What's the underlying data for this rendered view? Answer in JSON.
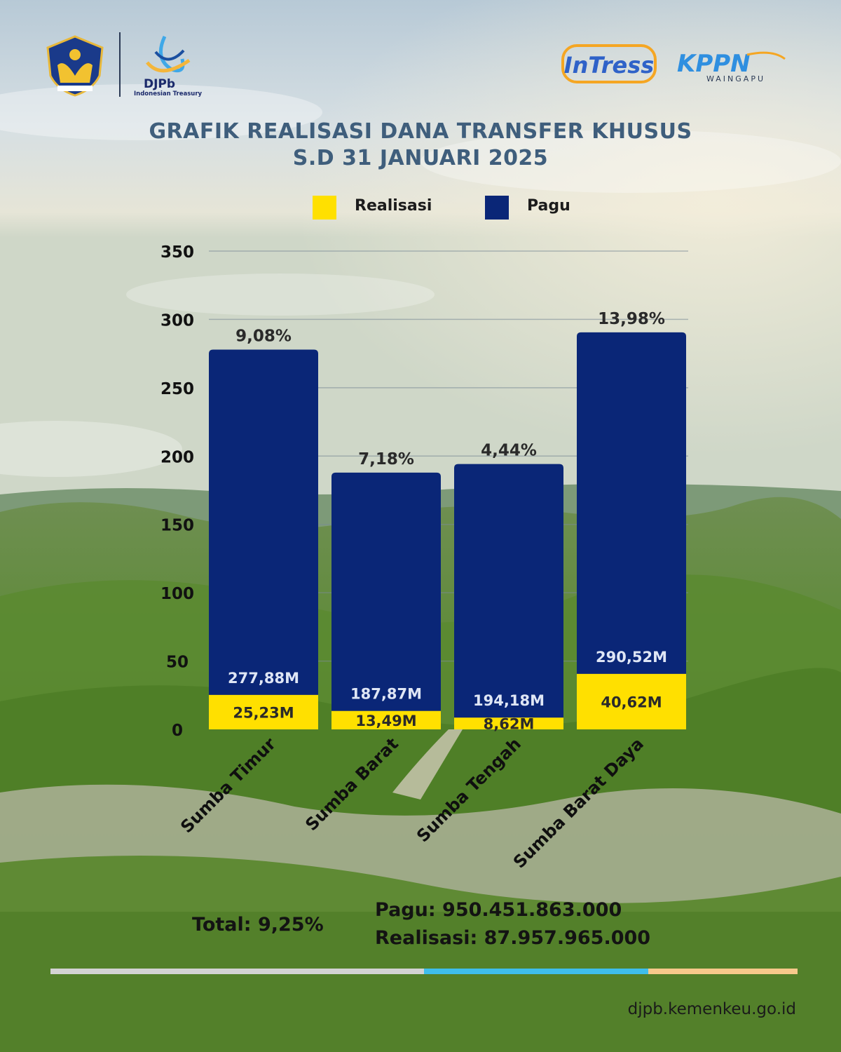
{
  "header": {
    "djpb_name": "DJPb",
    "djpb_subtitle": "Indonesian Treasury",
    "intress_logo_text": "InTress",
    "kppn_logo_text": "KPPN",
    "kppn_sub": "WAINGAPU"
  },
  "colors": {
    "realisasi": "#FFE000",
    "pagu": "#0A2677",
    "title": "#3F5E7C",
    "strip_gray": "#D3D3D3",
    "strip_blue": "#3FBEEC",
    "strip_orange": "#F7C98B"
  },
  "chart_data": {
    "type": "bar",
    "title": "GRAFIK REALISASI DANA TRANSFER KHUSUS",
    "subtitle": "S.D 31 JANUARI 2025",
    "categories": [
      "Sumba Timur",
      "Sumba Barat",
      "Sumba Tengah",
      "Sumba Barat Daya"
    ],
    "series": [
      {
        "name": "Realisasi",
        "values": [
          25.23,
          13.49,
          8.62,
          40.62
        ],
        "labels": [
          "25,23M",
          "13,49M",
          "8,62M",
          "40,62M"
        ]
      },
      {
        "name": "Pagu",
        "values": [
          277.88,
          187.87,
          194.18,
          290.52
        ],
        "labels": [
          "277,88M",
          "187,87M",
          "194,18M",
          "290,52M"
        ]
      }
    ],
    "percent_labels": [
      "9,08%",
      "7,18%",
      "4,44%",
      "13,98%"
    ],
    "y_ticks": [
      0,
      50,
      100,
      150,
      200,
      250,
      300,
      350
    ],
    "ylim": [
      0,
      350
    ],
    "grid": true,
    "legend_position": "top"
  },
  "summary": {
    "total": "Total: 9,25%",
    "pagu": "Pagu: 950.451.863.000",
    "realisasi": "Realisasi: 87.957.965.000"
  },
  "footer": {
    "url": "djpb.kemenkeu.go.id"
  }
}
